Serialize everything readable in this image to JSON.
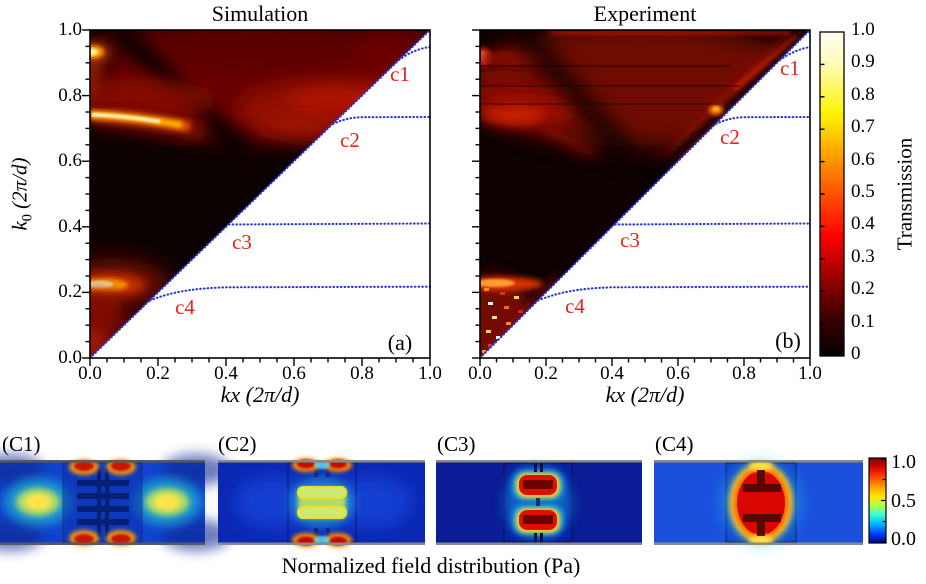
{
  "titles": {
    "panel_a": "Simulation",
    "panel_b": "Experiment"
  },
  "axis": {
    "xlabel_k": "kx",
    "xlabel_units": " (2π/d)",
    "ylabel_k": "k",
    "ylabel_sub": "0",
    "ylabel_units": " (2π/d)",
    "x_ticks": [
      "0.0",
      "0.2",
      "0.4",
      "0.6",
      "0.8",
      "1.0"
    ],
    "y_ticks": [
      "1.0",
      "0.8",
      "0.6",
      "0.4",
      "0.2",
      "0.0"
    ]
  },
  "panel_a": {
    "corner": "(a)",
    "curves": [
      "c1",
      "c2",
      "c3",
      "c4"
    ]
  },
  "panel_b": {
    "corner": "(b)",
    "curves": [
      "c1",
      "c2",
      "c3",
      "c4"
    ]
  },
  "colorbar": {
    "label": "Transmission",
    "ticks": [
      "1.0",
      "0.9",
      "0.8",
      "0.7",
      "0.6",
      "0.5",
      "0.4",
      "0.3",
      "0.2",
      "0.1",
      "0"
    ]
  },
  "fields": {
    "labels": [
      "(C1)",
      "(C2)",
      "(C3)",
      "(C4)"
    ],
    "colorbar_ticks": [
      "1.0",
      "0.5",
      "0.0"
    ],
    "caption": "Normalized field distribution (Pa)"
  },
  "chart_data": [
    {
      "type": "heatmap",
      "title": "Simulation",
      "panel": "(a)",
      "xlabel": "kx (2π/d)",
      "ylabel": "k0 (2π/d)",
      "xlim": [
        0,
        1.0
      ],
      "ylim": [
        0,
        1.0
      ],
      "x_ticks": [
        0.0,
        0.2,
        0.4,
        0.6,
        0.8,
        1.0
      ],
      "y_ticks": [
        0.0,
        0.2,
        0.4,
        0.6,
        0.8,
        1.0
      ],
      "value_label": "Transmission",
      "value_range": [
        0,
        1.0
      ],
      "colormap": "hot (black-red-yellow-white)",
      "domain_note": "data only above sound line k0 >= kx; region below sound line is white",
      "sound_line": {
        "from": [
          0,
          0
        ],
        "to": [
          1,
          1
        ],
        "style": "blue dotted circles"
      },
      "dispersion_branches": [
        {
          "label": "c1",
          "flat_k0": 0.95,
          "leaves_sound_line_at_kx": 0.91
        },
        {
          "label": "c2",
          "flat_k0": 0.735,
          "leaves_sound_line_at_kx": 0.72
        },
        {
          "label": "c3",
          "flat_k0": 0.41,
          "leaves_sound_line_at_kx": 0.41
        },
        {
          "label": "c4",
          "flat_k0": 0.22,
          "leaves_sound_line_at_kx": 0.18
        }
      ],
      "high_transmission_features": [
        {
          "shape": "bright arc band",
          "k0": 0.73,
          "kx_range": [
            0,
            0.28
          ],
          "peak_transmission": 1.0
        },
        {
          "shape": "bright spot",
          "k0": 0.93,
          "kx_range": [
            0,
            0.04
          ],
          "peak_transmission": 0.9
        },
        {
          "shape": "bright band",
          "k0": 0.22,
          "kx_range": [
            0,
            0.13
          ],
          "peak_transmission": 0.95
        },
        {
          "shape": "diffuse red cloud",
          "k0_range": [
            0.68,
            1.0
          ],
          "kx_range": [
            0.05,
            0.95
          ],
          "peak_transmission": 0.35
        },
        {
          "shape": "dark valley",
          "from": [
            0.08,
            1.0
          ],
          "to": [
            0.45,
            0.63
          ],
          "transmission": 0.02
        },
        {
          "shape": "red glow near sound line",
          "k0_range": [
            0,
            0.3
          ],
          "kx_range": [
            0,
            0.2
          ],
          "peak_transmission": 0.3
        }
      ]
    },
    {
      "type": "heatmap",
      "title": "Experiment",
      "panel": "(b)",
      "xlabel": "kx (2π/d)",
      "ylabel": "k0 (2π/d)",
      "xlim": [
        0,
        1.0
      ],
      "ylim": [
        0,
        1.0
      ],
      "x_ticks": [
        0.0,
        0.2,
        0.4,
        0.6,
        0.8,
        1.0
      ],
      "y_ticks": [
        0.0,
        0.2,
        0.4,
        0.6,
        0.8,
        1.0
      ],
      "value_label": "Transmission",
      "value_range": [
        0,
        1.0
      ],
      "colormap": "hot (black-red-yellow-white)",
      "domain_note": "noisy measured map above sound line; white below",
      "sound_line": {
        "from": [
          0,
          0
        ],
        "to": [
          1,
          1
        ],
        "style": "blue dotted circles"
      },
      "dispersion_branches": [
        {
          "label": "c1",
          "flat_k0": 0.95,
          "leaves_sound_line_at_kx": 0.91
        },
        {
          "label": "c2",
          "flat_k0": 0.735,
          "leaves_sound_line_at_kx": 0.72
        },
        {
          "label": "c3",
          "flat_k0": 0.41,
          "leaves_sound_line_at_kx": 0.41
        },
        {
          "label": "c4",
          "flat_k0": 0.22,
          "leaves_sound_line_at_kx": 0.18
        }
      ],
      "high_transmission_features": [
        {
          "shape": "red glow along sound line",
          "k0_range": [
            0.6,
            1.0
          ],
          "kx_range": [
            0.55,
            0.97
          ],
          "peak_transmission": 0.4
        },
        {
          "shape": "bright strip at top edge",
          "k0": 0.99,
          "kx_range": [
            0.2,
            0.95
          ],
          "peak_transmission": 0.4
        },
        {
          "shape": "streaky red patches",
          "k0_range": [
            0.7,
            0.95
          ],
          "kx_range": [
            0,
            0.35
          ],
          "peak_transmission": 0.45
        },
        {
          "shape": "bright spot left edge",
          "k0": 0.92,
          "kx": 0.01,
          "peak_transmission": 0.5
        },
        {
          "shape": "orange spot on sound line",
          "k0": 0.76,
          "kx": 0.72,
          "peak_transmission": 0.6
        },
        {
          "shape": "speckled bright region",
          "k0_range": [
            0,
            0.25
          ],
          "kx_range": [
            0,
            0.25
          ],
          "peak_transmission": 0.9
        },
        {
          "shape": "bright band",
          "k0": 0.22,
          "kx_range": [
            0,
            0.15
          ],
          "peak_transmission": 0.8
        },
        {
          "shape": "dark valley",
          "from": [
            0.12,
            1.0
          ],
          "to": [
            0.45,
            0.62
          ],
          "transmission": 0.03
        }
      ]
    },
    {
      "type": "heatmap",
      "title": "(C1)",
      "quantity": "Normalized field distribution (Pa)",
      "colormap": "jet",
      "value_range": [
        0,
        1.0
      ],
      "description": "standing-wave pattern through waveguide; yellow lobes (~0.6) left and right of unit cell, red hot spots (~1.0) at the four corners of the resonator cell, dark ladder-shaped resonator in center"
    },
    {
      "type": "heatmap",
      "title": "(C2)",
      "quantity": "Normalized field distribution (Pa)",
      "colormap": "jet",
      "value_range": [
        0,
        1.0
      ],
      "description": "field moderately localized in resonator: yellow-green (~0.5) inside two-bar resonator, red spots (~1.0) at cell top/bottom edges, low blue field (~0.1) in waveguide"
    },
    {
      "type": "heatmap",
      "title": "(C3)",
      "quantity": "Normalized field distribution (Pa)",
      "colormap": "jet",
      "value_range": [
        0,
        1.0
      ],
      "description": "field strongly confined: two stacked red lobes (~1.0) with yellow rims inside resonator cavities, near-zero dark blue field elsewhere"
    },
    {
      "type": "heatmap",
      "title": "(C4)",
      "quantity": "Normalized field distribution (Pa)",
      "colormap": "jet",
      "value_range": [
        0,
        1.0
      ],
      "description": "single large red resonance lobe (~1.0) with orange-yellow rim filling the cell, weak blue field (~0.15) radiating into waveguide"
    }
  ]
}
